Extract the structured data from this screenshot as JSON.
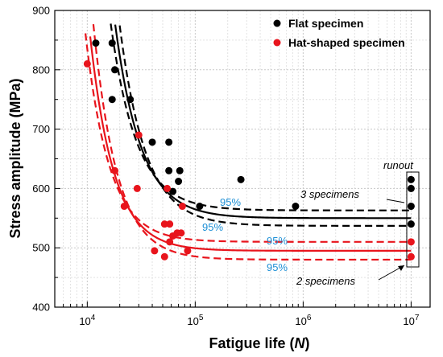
{
  "chart_data": {
    "type": "scatter",
    "xscale": "log",
    "xlabel_main": "Fatigue life (",
    "xlabel_var": "N",
    "xlabel_end": ")",
    "ylabel": "Stress amplitude (MPa)",
    "xlim": [
      5000,
      15000000
    ],
    "ylim": [
      400,
      900
    ],
    "x_ticks": [
      {
        "value": 10000,
        "base": "10",
        "exp": "4"
      },
      {
        "value": 100000,
        "base": "10",
        "exp": "5"
      },
      {
        "value": 1000000,
        "base": "10",
        "exp": "6"
      },
      {
        "value": 10000000,
        "base": "10",
        "exp": "7"
      }
    ],
    "y_ticks": [
      400,
      500,
      600,
      700,
      800,
      900
    ],
    "grid": true,
    "legend_position": "top-right",
    "series": [
      {
        "name": "Flat specimen",
        "color": "#000000",
        "points": [
          [
            12000,
            845
          ],
          [
            17000,
            845
          ],
          [
            18000,
            800
          ],
          [
            17000,
            750
          ],
          [
            25000,
            750
          ],
          [
            40000,
            678
          ],
          [
            57000,
            678
          ],
          [
            57000,
            630
          ],
          [
            72000,
            630
          ],
          [
            70000,
            612
          ],
          [
            62000,
            595
          ],
          [
            110000,
            570
          ],
          [
            265000,
            615
          ],
          [
            850000,
            570
          ],
          [
            10000000,
            615
          ],
          [
            10000000,
            600
          ],
          [
            10000000,
            570
          ],
          [
            10000000,
            540
          ]
        ],
        "fit_params": {
          "plateau": 550,
          "amp": 1160,
          "n0": 9000,
          "decay": 0.24
        },
        "band_offset_upper": 13,
        "band_offset_lower": -13,
        "band_steep_shift": 0.05
      },
      {
        "name": "Hat-shaped specimen",
        "color": "#e8141c",
        "points": [
          [
            10000,
            810
          ],
          [
            18000,
            630
          ],
          [
            22000,
            570
          ],
          [
            29000,
            600
          ],
          [
            30000,
            690
          ],
          [
            42000,
            495
          ],
          [
            52000,
            485
          ],
          [
            52000,
            540
          ],
          [
            55000,
            600
          ],
          [
            58000,
            510
          ],
          [
            58000,
            540
          ],
          [
            62000,
            520
          ],
          [
            68000,
            525
          ],
          [
            74000,
            525
          ],
          [
            85000,
            495
          ],
          [
            76000,
            570
          ],
          [
            10000000,
            510
          ],
          [
            10000000,
            485
          ]
        ],
        "fit_params": {
          "plateau": 495,
          "amp": 1120,
          "n0": 6000,
          "decay": 0.22
        },
        "band_offset_upper": 15,
        "band_offset_lower": -15,
        "band_steep_shift": 0.05
      }
    ],
    "annotations": {
      "runout": "runout",
      "three_specimens": "3 specimens",
      "two_specimens": "2 specimens",
      "pct_flat_upper": "95%",
      "pct_flat_lower": "95%",
      "pct_hat_upper": "95%",
      "pct_hat_lower": "95%"
    }
  }
}
